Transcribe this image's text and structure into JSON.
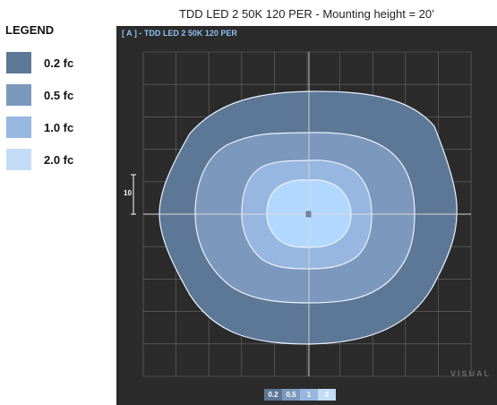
{
  "title": "TDD LED 2 50K 120 PER - Mounting height = 20’",
  "legend": {
    "heading": "LEGEND",
    "items": [
      {
        "label": "0.2 fc",
        "color": "#5d7796",
        "short": "0.2"
      },
      {
        "label": "0.5 fc",
        "color": "#7c98bd",
        "short": "0.5"
      },
      {
        "label": "1.0 fc",
        "color": "#97b6e0",
        "short": "1"
      },
      {
        "label": "2.0 fc",
        "color": "#c5dcf6",
        "short": "2"
      }
    ]
  },
  "plot": {
    "header": "[ A ] - TDD LED 2 50K 120 PER",
    "scale_label": "10",
    "watermark": "VISUAL",
    "background_color": "#2b2b2b",
    "grid_color": "#6b6b6b",
    "center_color": "#b3d8ff",
    "grid": true
  }
}
